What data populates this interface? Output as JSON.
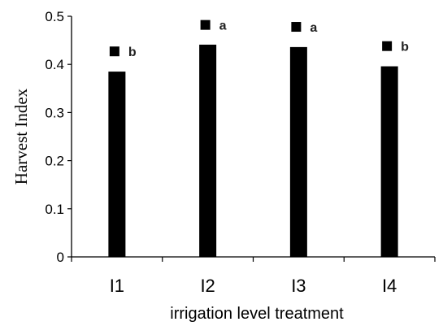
{
  "chart_data": {
    "type": "bar",
    "categories": [
      "I1",
      "I2",
      "I3",
      "I4"
    ],
    "values": [
      0.385,
      0.441,
      0.436,
      0.396
    ],
    "marker_values": [
      0.427,
      0.482,
      0.478,
      0.438
    ],
    "significance": [
      "b",
      "a",
      "a",
      "b"
    ],
    "title": "",
    "xlabel": "irrigation level treatment",
    "ylabel": "Harvest Index",
    "ylim": [
      0,
      0.5
    ],
    "yticks": [
      0,
      0.1,
      0.2,
      0.3,
      0.4,
      0.5
    ],
    "ytick_labels": [
      "0",
      "0.1",
      "0.2",
      "0.3",
      "0.4",
      "0.5"
    ],
    "grid": false,
    "legend": "none",
    "bar_color": "#000000",
    "axis_color": "#000000"
  }
}
